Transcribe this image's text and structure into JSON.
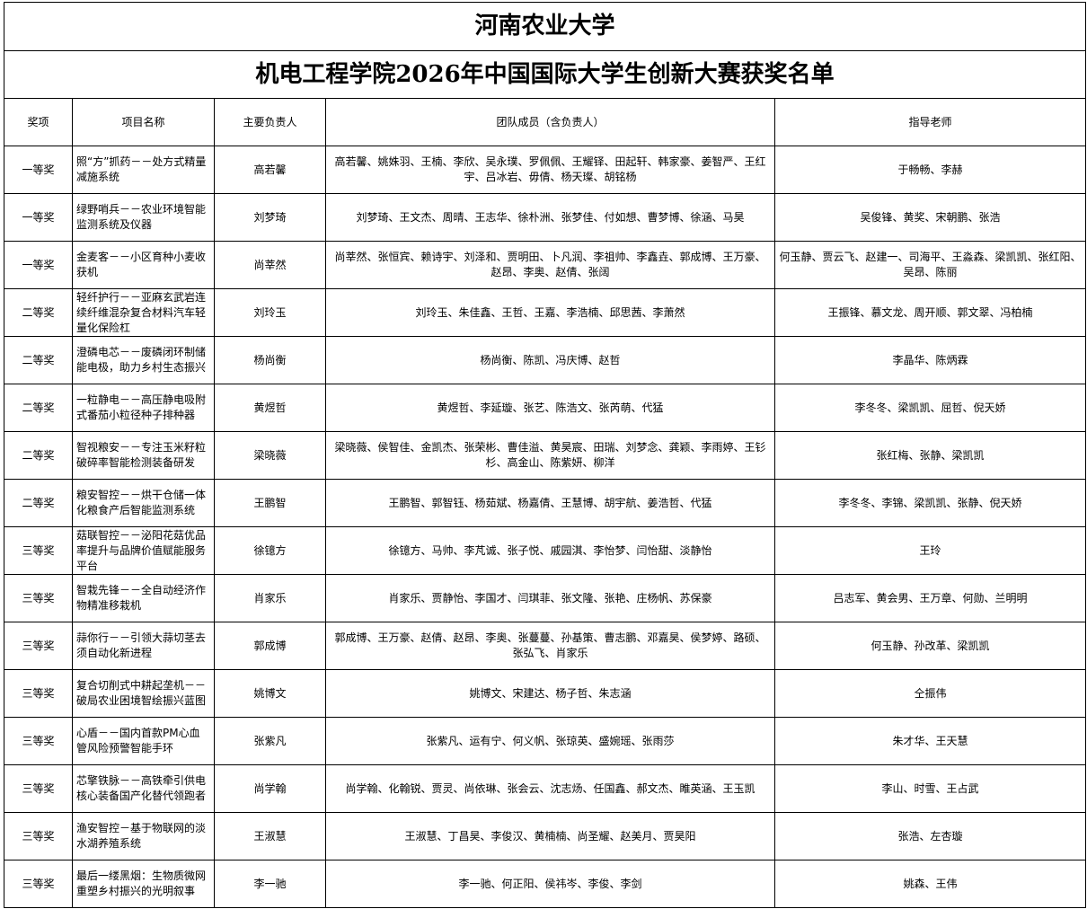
{
  "header": {
    "title": "河南农业大学",
    "subtitle": "机电工程学院2026年中国国际大学生创新大赛获奖名单"
  },
  "table": {
    "columns": [
      "奖项",
      "项目名称",
      "主要负责人",
      "团队成员（含负责人）",
      "指导老师"
    ],
    "rows": [
      [
        "一等奖",
        "照“方”抓药－－处方式精量减施系统",
        "高若馨",
        "高若馨、姚姝羽、王楠、李欣、吴永璞、罗佩佩、王耀铎、田起轩、韩家豪、姜智严、王红宇、吕冰岩、毋倩、杨天璨、胡铭杨",
        "于畅畅、李赫"
      ],
      [
        "一等奖",
        "绿野哨兵－－农业环境智能监测系统及仪器",
        "刘梦琦",
        "刘梦琦、王文杰、周晴、王志华、徐朴洲、张梦佳、付如想、曹梦博、徐涵、马昊",
        "吴俊锋、黄奖、宋朝鹏、张浩"
      ],
      [
        "一等奖",
        "金麦客－－小区育种小麦收获机",
        "尚莘然",
        "尚莘然、张恒宾、赖诗宇、刘泽和、贾明田、卜凡润、李祖帅、李鑫垚、郭成博、王万豪、赵昂、李奥、赵倩、张阔",
        "何玉静、贾云飞、赵建一、司海平、王淼森、梁凯凯、张红阳、吴昂、陈丽"
      ],
      [
        "二等奖",
        "轻纤护行－－亚麻玄武岩连续纤维混杂复合材料汽车轻量化保险杠",
        "刘玲玉",
        "刘玲玉、朱佳鑫、王哲、王嘉、李浩楠、邱思茜、李萧然",
        "王振锋、慕文龙、周开顺、郭文翠、冯柏楠"
      ],
      [
        "二等奖",
        "澄磷电芯－－废磷闭环制储能电极，助力乡村生态振兴",
        "杨尚衡",
        "杨尚衡、陈凯、冯庆博、赵哲",
        "李晶华、陈炳霖"
      ],
      [
        "二等奖",
        "一粒静电－－高压静电吸附式番茄小粒径种子排种器",
        "黄煜哲",
        "黄煜哲、李延璇、张艺、陈浩文、张芮萌、代猛",
        "李冬冬、梁凯凯、屈哲、倪天娇"
      ],
      [
        "二等奖",
        "智视粮安－－专注玉米籽粒破碎率智能检测装备研发",
        "梁晓薇",
        "梁晓薇、侯智佳、金凯杰、张荣彬、曹佳溢、黄昊宸、田瑞、刘梦念、龚颖、李雨婷、王钐杉、高金山、陈紫妍、柳洋",
        "张红梅、张静、梁凯凯"
      ],
      [
        "二等奖",
        "粮安智控－－烘干仓储一体化粮食产后智能监测系统",
        "王鹏智",
        "王鹏智、郭智钰、杨茹斌、杨嘉倩、王慧博、胡宇航、姜浩哲、代猛",
        "李冬冬、李锦、梁凯凯、张静、倪天娇"
      ],
      [
        "三等奖",
        "菇联智控－－泌阳花菇优品率提升与品牌价值赋能服务平台",
        "徐镱方",
        "徐镱方、马帅、李芃诚、张子悦、戚园淇、李怡梦、闫怡甜、淡静怡",
        "王玲"
      ],
      [
        "三等奖",
        "智栽先锋－－全自动经济作物精准移栽机",
        "肖家乐",
        "肖家乐、贾静怡、李国才、闫琪菲、张文隆、张艳、庄杨帆、苏保豪",
        "吕志军、黄会男、王万章、何勋、兰明明"
      ],
      [
        "三等奖",
        "蒜你行－－引领大蒜切茎去须自动化新进程",
        "郭成博",
        "郭成博、王万豪、赵倩、赵昂、李奥、张蔓蔓、孙基策、曹志鹏、邓嘉昊、侯梦婷、路硕、张弘飞、肖家乐",
        "何玉静、孙改革、梁凯凯"
      ],
      [
        "三等奖",
        "复合切削式中耕起垄机－－破局农业困境智绘振兴蓝图",
        "姚博文",
        "姚博文、宋建达、杨子哲、朱志涵",
        "仝振伟"
      ],
      [
        "三等奖",
        "心盾－－国内首款PM心血管风险预警智能手环",
        "张紫凡",
        "张紫凡、运有宁、何义帆、张琼英、盛婉瑶、张雨莎",
        "朱才华、王天慧"
      ],
      [
        "三等奖",
        "芯擎铁脉－－高铁牵引供电核心装备国产化替代领跑者",
        "尚学翰",
        "尚学翰、化翰锐、贾灵、尚依琳、张会云、沈志炀、任国鑫、郝文杰、睢英涵、王玉凯",
        "李山、时雪、王占武"
      ],
      [
        "三等奖",
        "渔安智控－基于物联网的淡水湖养殖系统",
        "王淑慧",
        "王淑慧、丁昌昊、李俊汉、黄楠楠、尚圣耀、赵美月、贾昊阳",
        "张浩、左杏璇"
      ],
      [
        "三等奖",
        "最后一缕黑烟：生物质微网重塑乡村振兴的光明叙事",
        "李一驰",
        "李一驰、何正阳、侯祎岑、李俊、李剑",
        "姚森、王伟"
      ]
    ]
  }
}
